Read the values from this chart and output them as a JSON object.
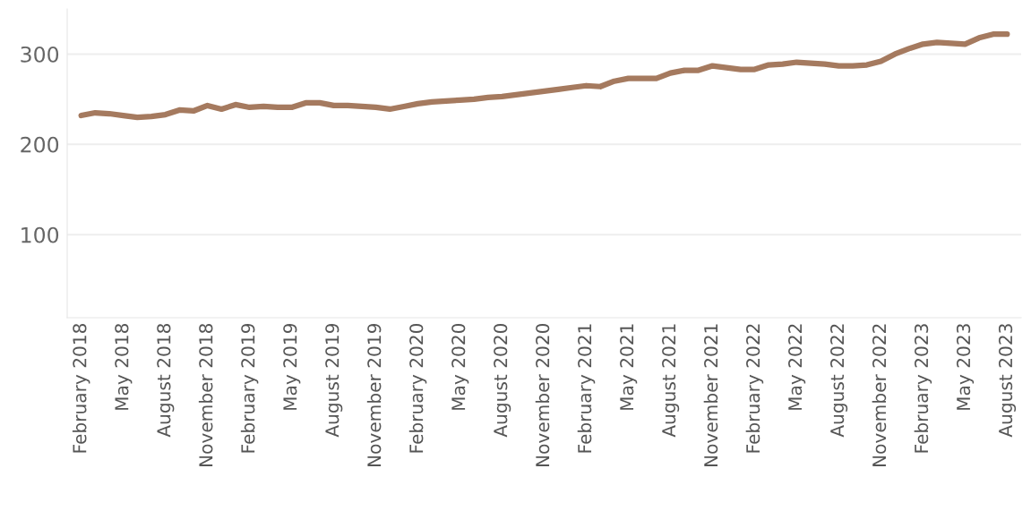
{
  "chart_data": {
    "type": "line",
    "x": [
      "2018-02",
      "2018-03",
      "2018-04",
      "2018-05",
      "2018-06",
      "2018-07",
      "2018-08",
      "2018-09",
      "2018-10",
      "2018-11",
      "2018-12",
      "2019-01",
      "2019-02",
      "2019-03",
      "2019-04",
      "2019-05",
      "2019-06",
      "2019-07",
      "2019-08",
      "2019-09",
      "2019-10",
      "2019-11",
      "2019-12",
      "2020-01",
      "2020-02",
      "2020-03",
      "2020-04",
      "2020-05",
      "2020-06",
      "2020-07",
      "2020-08",
      "2020-09",
      "2020-10",
      "2020-11",
      "2020-12",
      "2021-01",
      "2021-02",
      "2021-03",
      "2021-04",
      "2021-05",
      "2021-06",
      "2021-07",
      "2021-08",
      "2021-09",
      "2021-10",
      "2021-11",
      "2021-12",
      "2022-01",
      "2022-02",
      "2022-03",
      "2022-04",
      "2022-05",
      "2022-06",
      "2022-07",
      "2022-08",
      "2022-09",
      "2022-10",
      "2022-11",
      "2022-12",
      "2023-01",
      "2023-02",
      "2023-03",
      "2023-04",
      "2023-05",
      "2023-06",
      "2023-07",
      "2023-08"
    ],
    "series": [
      {
        "color": "#a57a5f",
        "values": [
          232,
          235,
          234,
          232,
          230,
          231,
          233,
          238,
          237,
          243,
          239,
          244,
          241,
          242,
          241,
          241,
          246,
          246,
          243,
          243,
          242,
          241,
          239,
          242,
          245,
          247,
          248,
          249,
          250,
          252,
          253,
          255,
          257,
          259,
          261,
          263,
          265,
          264,
          270,
          273,
          273,
          273,
          279,
          282,
          282,
          287,
          285,
          283,
          283,
          288,
          289,
          291,
          290,
          289,
          287,
          287,
          288,
          292,
          300,
          306,
          311,
          313,
          312,
          311,
          318,
          322,
          322
        ]
      }
    ],
    "ylim": [
      8,
      350
    ],
    "yticks": [
      100,
      200,
      300
    ],
    "xticks": [
      {
        "value": "2018-02",
        "label": "February 2018"
      },
      {
        "value": "2018-05",
        "label": "May 2018"
      },
      {
        "value": "2018-08",
        "label": "August 2018"
      },
      {
        "value": "2018-11",
        "label": "November 2018"
      },
      {
        "value": "2019-02",
        "label": "February 2019"
      },
      {
        "value": "2019-05",
        "label": "May 2019"
      },
      {
        "value": "2019-08",
        "label": "August 2019"
      },
      {
        "value": "2019-11",
        "label": "November 2019"
      },
      {
        "value": "2020-02",
        "label": "February 2020"
      },
      {
        "value": "2020-05",
        "label": "May 2020"
      },
      {
        "value": "2020-08",
        "label": "August 2020"
      },
      {
        "value": "2020-11",
        "label": "November 2020"
      },
      {
        "value": "2021-02",
        "label": "February 2021"
      },
      {
        "value": "2021-05",
        "label": "May 2021"
      },
      {
        "value": "2021-08",
        "label": "August 2021"
      },
      {
        "value": "2021-11",
        "label": "November 2021"
      },
      {
        "value": "2022-02",
        "label": "February 2022"
      },
      {
        "value": "2022-05",
        "label": "May 2022"
      },
      {
        "value": "2022-08",
        "label": "August 2022"
      },
      {
        "value": "2022-11",
        "label": "November 2022"
      },
      {
        "value": "2023-02",
        "label": "February 2023"
      },
      {
        "value": "2023-05",
        "label": "May 2023"
      },
      {
        "value": "2023-08",
        "label": "August 2023"
      }
    ],
    "xlim": [
      "2018-01",
      "2023-09"
    ],
    "grid": "y",
    "line_style": "solid",
    "marker": "none"
  }
}
